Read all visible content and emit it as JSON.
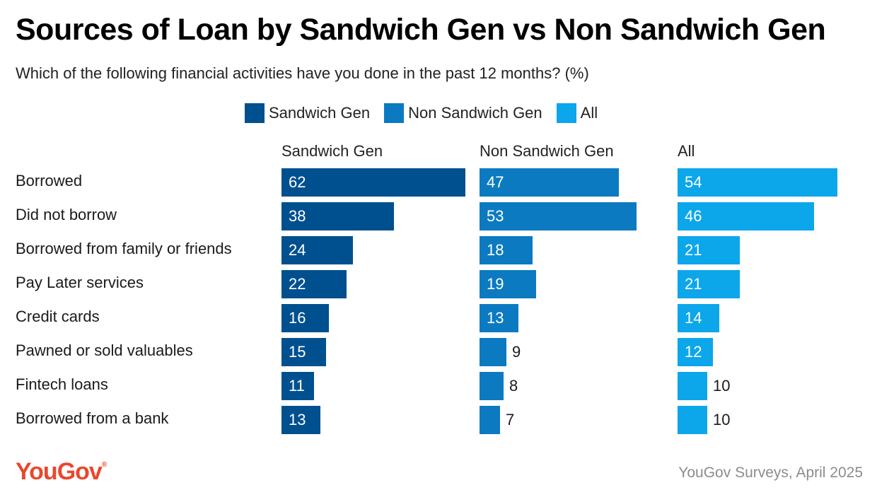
{
  "title": "Sources of Loan by Sandwich Gen vs Non Sandwich Gen",
  "subtitle": "Which of the following financial activities have you done in the past 12 months? (%)",
  "legend": [
    {
      "label": "Sandwich Gen",
      "color": "#00508f"
    },
    {
      "label": "Non Sandwich Gen",
      "color": "#0b7ac1"
    },
    {
      "label": "All",
      "color": "#0ca6ea"
    }
  ],
  "logo": "YouGov",
  "source": "YouGov Surveys, April 2025",
  "chart_data": {
    "type": "bar",
    "orientation": "horizontal",
    "categories": [
      "Borrowed",
      "Did not borrow",
      "Borrowed from family or friends",
      "Pay Later services",
      "Credit cards",
      "Pawned or sold valuables",
      "Fintech loans",
      "Borrowed from a bank"
    ],
    "series": [
      {
        "name": "Sandwich Gen",
        "color": "#00508f",
        "values": [
          62,
          38,
          24,
          22,
          16,
          15,
          11,
          13
        ]
      },
      {
        "name": "Non Sandwich Gen",
        "color": "#0b7ac1",
        "values": [
          47,
          53,
          18,
          19,
          13,
          9,
          8,
          7
        ]
      },
      {
        "name": "All",
        "color": "#0ca6ea",
        "values": [
          54,
          46,
          21,
          21,
          14,
          12,
          10,
          10
        ]
      }
    ],
    "xlim": [
      0,
      62
    ],
    "grid": false,
    "legend_position": "top"
  }
}
